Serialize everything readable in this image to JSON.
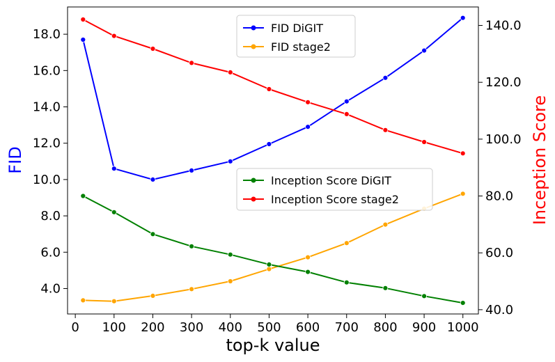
{
  "chart_data": {
    "type": "line",
    "x": [
      20,
      100,
      200,
      300,
      400,
      500,
      600,
      700,
      800,
      900,
      1000
    ],
    "xlabel": "top-k value",
    "ylabel_left": "FID",
    "ylabel_right": "Inception Score",
    "xlim": [
      -20,
      1040
    ],
    "ylim_left": [
      2.6,
      19.5
    ],
    "ylim_right": [
      38.5,
      146.5
    ],
    "xticks": [
      0,
      100,
      200,
      300,
      400,
      500,
      600,
      700,
      800,
      900,
      1000
    ],
    "xtick_labels": [
      "0",
      "100",
      "200",
      "300",
      "400",
      "500",
      "600",
      "700",
      "800",
      "900",
      "1000"
    ],
    "yticks_left": [
      4,
      6,
      8,
      10,
      12,
      14,
      16,
      18
    ],
    "ytick_labels_left": [
      "4.0",
      "6.0",
      "8.0",
      "10.0",
      "12.0",
      "14.0",
      "16.0",
      "18.0"
    ],
    "yticks_right": [
      40,
      60,
      80,
      100,
      120,
      140
    ],
    "ytick_labels_right": [
      "40.0",
      "60.0",
      "80.0",
      "100.0",
      "120.0",
      "140.0"
    ],
    "series": [
      {
        "name": "FID DiGIT",
        "axis": "left",
        "color": "#0000ff",
        "values": [
          17.7,
          10.6,
          10.0,
          10.5,
          11.0,
          11.95,
          12.9,
          14.3,
          15.6,
          17.1,
          18.9
        ]
      },
      {
        "name": "FID stage2",
        "axis": "left",
        "color": "#ffa500",
        "values": [
          3.35,
          3.3,
          3.6,
          3.97,
          4.4,
          5.07,
          5.72,
          6.5,
          7.52,
          8.4,
          9.22
        ]
      },
      {
        "name": "Inception Score DiGIT",
        "axis": "right",
        "color": "#008000",
        "values": [
          80.0,
          74.3,
          66.6,
          62.3,
          59.4,
          55.9,
          53.3,
          49.6,
          47.6,
          44.8,
          42.4
        ]
      },
      {
        "name": "Inception Score stage2",
        "axis": "right",
        "color": "#ff0000",
        "values": [
          142.1,
          136.3,
          131.8,
          126.8,
          123.5,
          117.6,
          113.0,
          108.8,
          103.2,
          99.0,
          95.0
        ]
      }
    ],
    "legends": [
      {
        "placement": "top-center",
        "entries": [
          "FID DiGIT",
          "FID stage2"
        ]
      },
      {
        "placement": "center-right",
        "entries": [
          "Inception Score DiGIT",
          "Inception Score stage2"
        ]
      }
    ],
    "colors": {
      "left_axis_title": "#0000ff",
      "right_axis_title": "#ff0000"
    },
    "grid": false
  }
}
